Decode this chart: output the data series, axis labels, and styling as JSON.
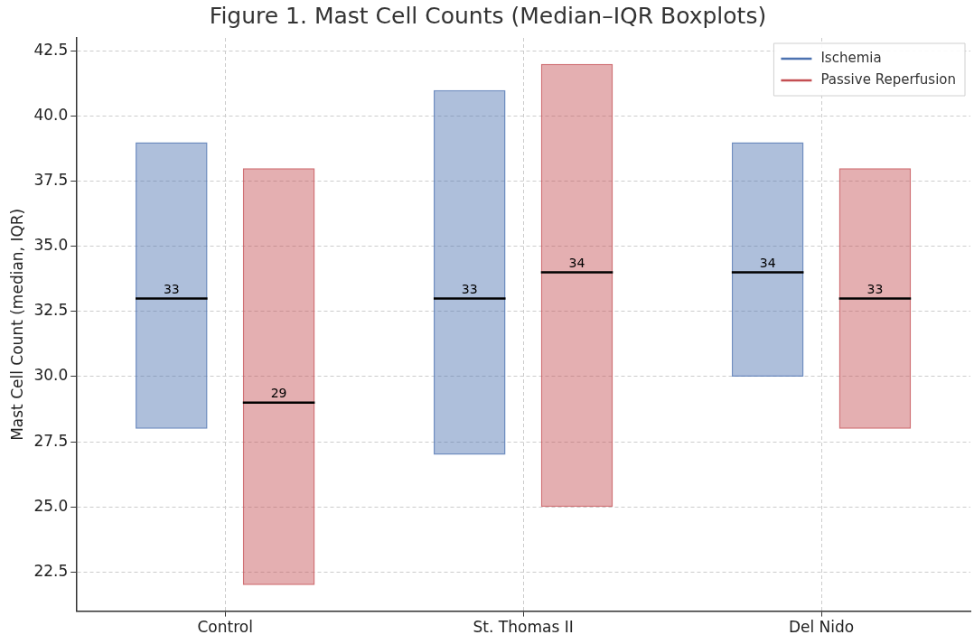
{
  "chart_data": {
    "type": "box",
    "title": "Figure 1. Mast Cell Counts (Median–IQR Boxplots)",
    "ylabel": "Mast Cell Count (median, IQR)",
    "categories": [
      "Control",
      "St. Thomas II",
      "Del Nido"
    ],
    "series": [
      {
        "name": "Ischemia",
        "color": "#4c72b0",
        "value_labels": [
          "33",
          "33",
          "34"
        ],
        "boxes": [
          {
            "low": 28,
            "q1": 28,
            "median": 33,
            "q3": 39,
            "high": 39
          },
          {
            "low": 27,
            "q1": 27,
            "median": 33,
            "q3": 41,
            "high": 41
          },
          {
            "low": 30,
            "q1": 30,
            "median": 34,
            "q3": 39,
            "high": 39
          }
        ]
      },
      {
        "name": "Passive Reperfusion",
        "color": "#c44e52",
        "value_labels": [
          "29",
          "34",
          "33"
        ],
        "boxes": [
          {
            "low": 22,
            "q1": 22,
            "median": 29,
            "q3": 38,
            "high": 38
          },
          {
            "low": 25,
            "q1": 25,
            "median": 34,
            "q3": 42,
            "high": 42
          },
          {
            "low": 28,
            "q1": 28,
            "median": 33,
            "q3": 38,
            "high": 38
          }
        ]
      }
    ],
    "ylim": [
      21,
      43
    ],
    "yticks": [
      22.5,
      {
        "value": 25,
        "label": "25.0"
      },
      27.5,
      {
        "value": 30,
        "label": "30.0"
      },
      32.5,
      {
        "value": 35,
        "label": "35.0"
      },
      37.5,
      {
        "value": 40,
        "label": "40.0"
      },
      42.5
    ],
    "grid": true,
    "legend": "top right"
  }
}
